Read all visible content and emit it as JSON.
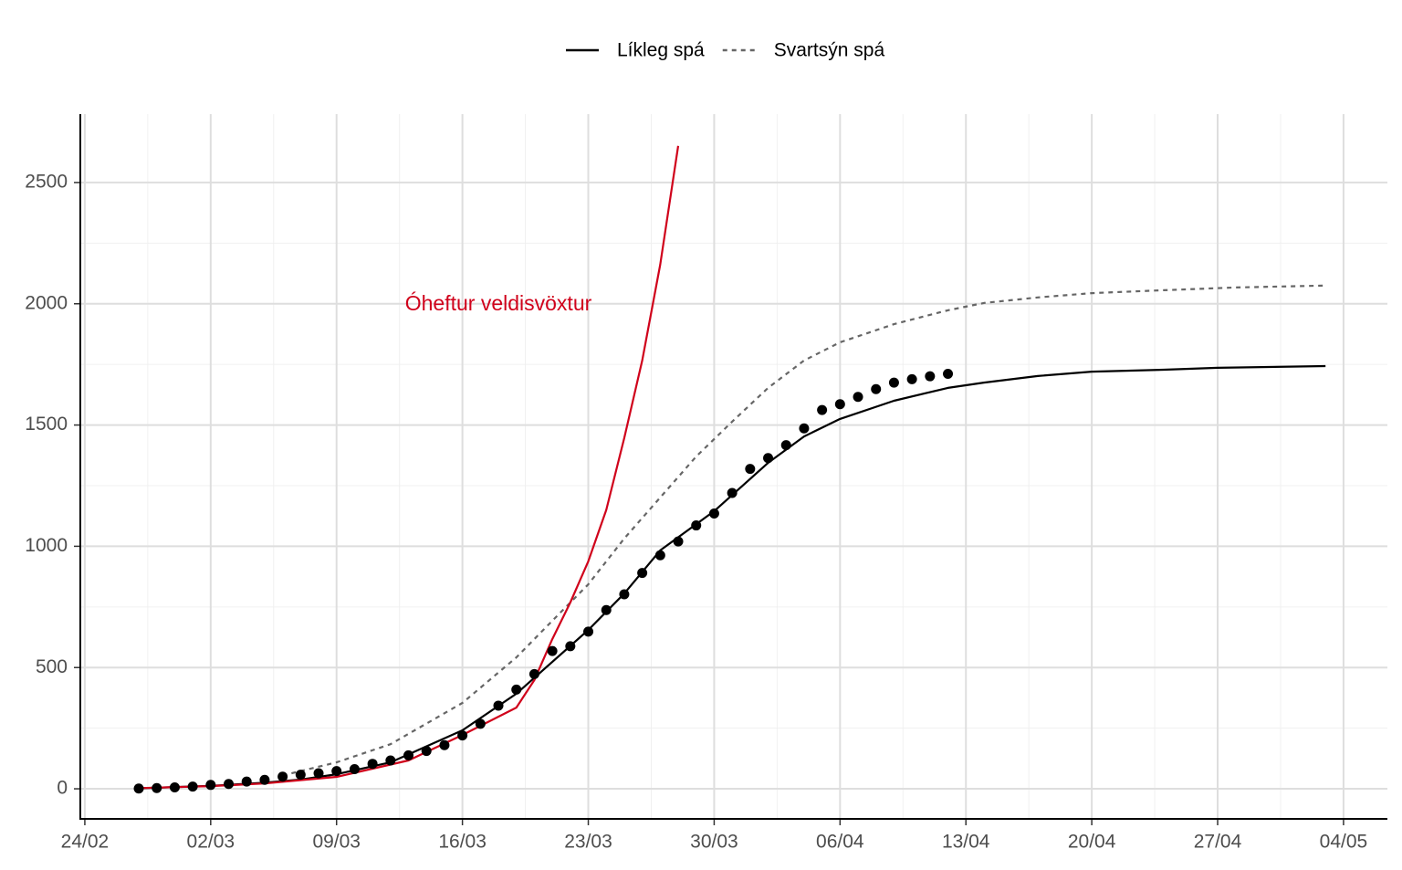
{
  "chart_data": {
    "type": "line",
    "annotation": {
      "text": "Óheftur veldisvöxtur",
      "color": "#d0021b"
    },
    "xlim": [
      -0.25,
      72.44
    ],
    "ylim": [
      -124,
      2782
    ],
    "xticks": [
      {
        "value": 0,
        "label": "24/02"
      },
      {
        "value": 7,
        "label": "02/03"
      },
      {
        "value": 14,
        "label": "09/03"
      },
      {
        "value": 21,
        "label": "16/03"
      },
      {
        "value": 28,
        "label": "23/03"
      },
      {
        "value": 35,
        "label": "30/03"
      },
      {
        "value": 42,
        "label": "06/04"
      },
      {
        "value": 49,
        "label": "13/04"
      },
      {
        "value": 56,
        "label": "20/04"
      },
      {
        "value": 63,
        "label": "27/04"
      },
      {
        "value": 70,
        "label": "04/05"
      }
    ],
    "yticks": [
      0,
      500,
      1000,
      1500,
      2000,
      2500
    ],
    "grid": true,
    "minor_grid": true,
    "legend": "top",
    "series": [
      {
        "name": "Líkleg spá",
        "color": "#000000",
        "style": "solid",
        "x": [
          3,
          7,
          10,
          12,
          14,
          17,
          21,
          24,
          28,
          30,
          32,
          35,
          38,
          40,
          42,
          45,
          48,
          50,
          53,
          56,
          60,
          63,
          69
        ],
        "values": [
          2,
          12,
          25,
          38,
          60,
          109,
          241,
          392,
          655,
          805,
          983,
          1145,
          1344,
          1453,
          1525,
          1600,
          1653,
          1675,
          1702,
          1720,
          1728,
          1736,
          1743
        ]
      },
      {
        "name": "Svartsýn spá",
        "color": "#666666",
        "style": "dotted",
        "x": [
          11,
          14,
          17,
          21,
          24,
          26,
          28,
          30,
          32,
          34,
          36,
          38,
          40,
          42,
          45,
          48,
          50,
          53,
          56,
          60,
          64,
          69
        ],
        "values": [
          55,
          109,
          184,
          354,
          542,
          693,
          843,
          1032,
          1201,
          1370,
          1514,
          1653,
          1766,
          1841,
          1916,
          1973,
          2003,
          2026,
          2044,
          2056,
          2067,
          2075
        ]
      },
      {
        "color": "#d0021b",
        "style": "solid",
        "x": [
          3,
          7,
          10,
          14,
          18,
          21,
          24,
          25,
          26,
          27,
          28,
          29,
          30,
          31,
          32,
          33
        ],
        "values": [
          3,
          11,
          22,
          49,
          117,
          222,
          335,
          448,
          617,
          768,
          938,
          1150,
          1446,
          1766,
          2161,
          2651
        ]
      },
      {
        "color": "#000000",
        "style": "points",
        "x": [
          3,
          4,
          5,
          6,
          7,
          8,
          9,
          10,
          11,
          12,
          13,
          14,
          15,
          16,
          17,
          18,
          19,
          20,
          21,
          22,
          23,
          24,
          25,
          26,
          27,
          28,
          29,
          30,
          31,
          32,
          33,
          34,
          35,
          36,
          37,
          38,
          39,
          40,
          41,
          42,
          43,
          44,
          45,
          46,
          47,
          48
        ],
        "values": [
          1,
          3,
          6,
          9,
          16,
          20,
          30,
          37,
          50,
          58,
          64,
          73,
          81,
          103,
          117,
          138,
          156,
          180,
          220,
          268,
          343,
          409,
          473,
          568,
          588,
          648,
          737,
          802,
          890,
          963,
          1020,
          1086,
          1135,
          1220,
          1319,
          1364,
          1417,
          1486,
          1562,
          1586,
          1616,
          1648,
          1675,
          1689,
          1701,
          1711
        ]
      }
    ]
  }
}
